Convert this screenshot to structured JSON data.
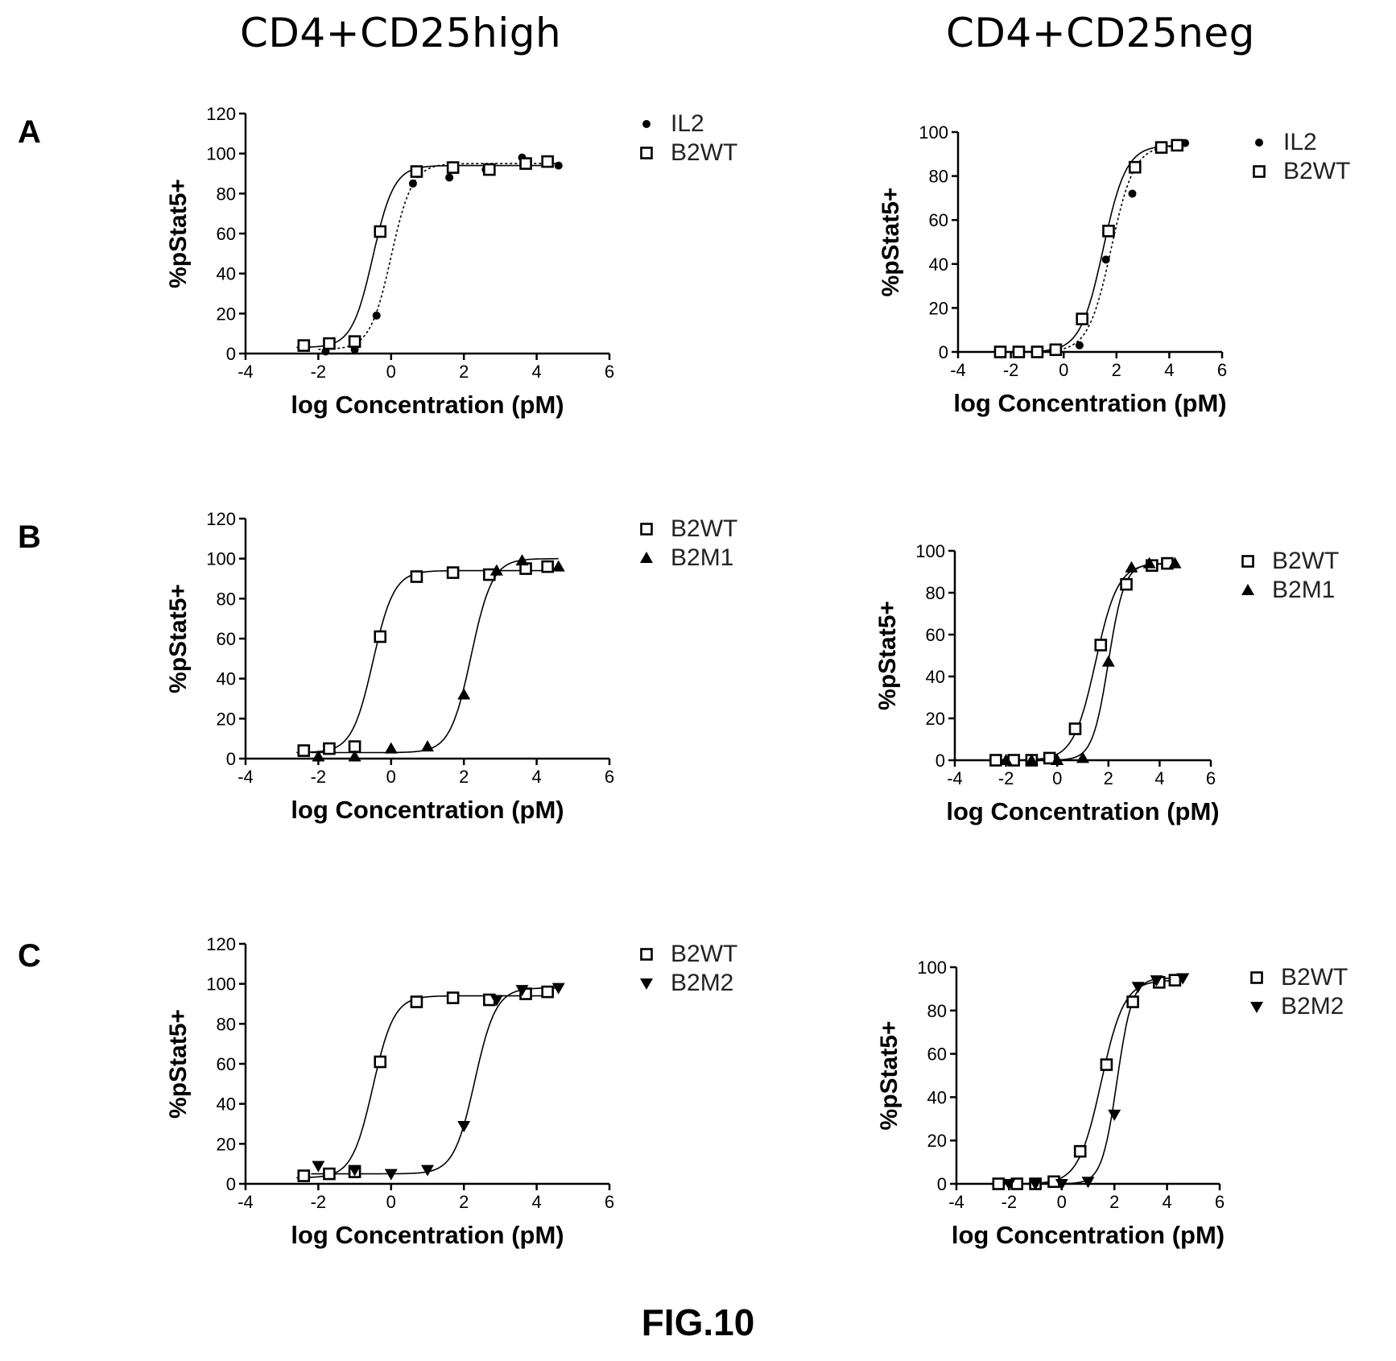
{
  "column_titles": [
    "CD4+CD25high",
    "CD4+CD25neg"
  ],
  "row_labels": [
    "A",
    "B",
    "C"
  ],
  "figure_label": "FIG.10",
  "chart_data": [
    {
      "panel": "A-left",
      "type": "scatter",
      "xlabel": "log Concentration (pM)",
      "ylabel": "%pStat5+",
      "xlim": [
        -4,
        6
      ],
      "ylim": [
        0,
        120
      ],
      "xticks": [
        -4,
        -2,
        0,
        2,
        4,
        6
      ],
      "yticks": [
        0,
        20,
        40,
        60,
        80,
        100,
        120
      ],
      "legend_position": "right",
      "series": [
        {
          "name": "IL2",
          "marker": "circle",
          "line": "dotted",
          "x": [
            -1.8,
            -1.0,
            -0.4,
            0.6,
            1.6,
            2.6,
            3.6,
            4.6
          ],
          "y": [
            1,
            2,
            19,
            85,
            88,
            92,
            98,
            94
          ],
          "curve": {
            "bottom": 2,
            "top": 95,
            "ec50": 0.0,
            "hill": 1.5
          }
        },
        {
          "name": "B2WT",
          "marker": "square-open",
          "line": "solid",
          "x": [
            -2.4,
            -1.7,
            -1.0,
            -0.3,
            0.7,
            1.7,
            2.7,
            3.7,
            4.3
          ],
          "y": [
            4,
            5,
            6,
            61,
            91,
            93,
            92,
            95,
            96
          ],
          "curve": {
            "bottom": 3,
            "top": 94,
            "ec50": -0.5,
            "hill": 1.5
          }
        }
      ]
    },
    {
      "panel": "A-right",
      "type": "scatter",
      "xlabel": "log Concentration (pM)",
      "ylabel": "%pStat5+",
      "xlim": [
        -4,
        6
      ],
      "ylim": [
        0,
        100
      ],
      "xticks": [
        -4,
        -2,
        0,
        2,
        4,
        6
      ],
      "yticks": [
        0,
        20,
        40,
        60,
        80,
        100
      ],
      "legend_position": "right",
      "series": [
        {
          "name": "IL2",
          "marker": "circle",
          "line": "dotted",
          "x": [
            -1.8,
            -1.0,
            -0.4,
            0.6,
            1.6,
            2.6,
            3.6,
            4.6
          ],
          "y": [
            0,
            0,
            1,
            3,
            42,
            72,
            93,
            95
          ],
          "curve": {
            "bottom": 0,
            "top": 94,
            "ec50": 1.8,
            "hill": 1.0
          }
        },
        {
          "name": "B2WT",
          "marker": "square-open",
          "line": "solid",
          "x": [
            -2.4,
            -1.7,
            -1.0,
            -0.3,
            0.7,
            1.7,
            2.7,
            3.7,
            4.3
          ],
          "y": [
            0,
            0,
            0,
            1,
            15,
            55,
            84,
            93,
            94
          ],
          "curve": {
            "bottom": 0,
            "top": 94,
            "ec50": 1.5,
            "hill": 1.0
          }
        }
      ]
    },
    {
      "panel": "B-left",
      "type": "scatter",
      "xlabel": "log Concentration (pM)",
      "ylabel": "%pStat5+",
      "xlim": [
        -4,
        6
      ],
      "ylim": [
        0,
        120
      ],
      "xticks": [
        -4,
        -2,
        0,
        2,
        4,
        6
      ],
      "yticks": [
        0,
        20,
        40,
        60,
        80,
        100,
        120
      ],
      "legend_position": "right",
      "series": [
        {
          "name": "B2WT",
          "marker": "square-open",
          "line": "solid",
          "x": [
            -2.4,
            -1.7,
            -1.0,
            -0.3,
            0.7,
            1.7,
            2.7,
            3.7,
            4.3
          ],
          "y": [
            4,
            5,
            6,
            61,
            91,
            93,
            92,
            95,
            96
          ],
          "curve": {
            "bottom": 3,
            "top": 94,
            "ec50": -0.5,
            "hill": 1.5
          }
        },
        {
          "name": "B2M1",
          "marker": "triangle-up",
          "line": "solid",
          "x": [
            -2.0,
            -1.0,
            0.0,
            1.0,
            2.0,
            2.9,
            3.6,
            4.6
          ],
          "y": [
            1,
            1,
            5,
            6,
            32,
            94,
            99,
            96
          ],
          "curve": {
            "bottom": 3,
            "top": 100,
            "ec50": 2.2,
            "hill": 1.5
          }
        }
      ]
    },
    {
      "panel": "B-right",
      "type": "scatter",
      "xlabel": "log Concentration (pM)",
      "ylabel": "%pStat5+",
      "xlim": [
        -4,
        6
      ],
      "ylim": [
        0,
        100
      ],
      "xticks": [
        -4,
        -2,
        0,
        2,
        4,
        6
      ],
      "yticks": [
        0,
        20,
        40,
        60,
        80,
        100
      ],
      "legend_position": "right",
      "series": [
        {
          "name": "B2WT",
          "marker": "square-open",
          "line": "solid",
          "x": [
            -2.4,
            -1.7,
            -1.0,
            -0.3,
            0.7,
            1.7,
            2.7,
            3.7,
            4.3
          ],
          "y": [
            0,
            0,
            0,
            1,
            15,
            55,
            84,
            93,
            94
          ],
          "curve": {
            "bottom": 0,
            "top": 94,
            "ec50": 1.5,
            "hill": 1.0
          }
        },
        {
          "name": "B2M1",
          "marker": "triangle-up",
          "line": "solid",
          "x": [
            -2.0,
            -1.0,
            0.0,
            1.0,
            2.0,
            2.9,
            3.6,
            4.6
          ],
          "y": [
            0,
            0,
            0,
            1,
            47,
            92,
            94,
            94
          ],
          "curve": {
            "bottom": 0,
            "top": 94,
            "ec50": 2.0,
            "hill": 1.4
          }
        }
      ]
    },
    {
      "panel": "C-left",
      "type": "scatter",
      "xlabel": "log Concentration (pM)",
      "ylabel": "%pStat5+",
      "xlim": [
        -4,
        6
      ],
      "ylim": [
        0,
        120
      ],
      "xticks": [
        -4,
        -2,
        0,
        2,
        4,
        6
      ],
      "yticks": [
        0,
        20,
        40,
        60,
        80,
        100,
        120
      ],
      "legend_position": "right",
      "series": [
        {
          "name": "B2WT",
          "marker": "square-open",
          "line": "solid",
          "x": [
            -2.4,
            -1.7,
            -1.0,
            -0.3,
            0.7,
            1.7,
            2.7,
            3.7,
            4.3
          ],
          "y": [
            4,
            5,
            6,
            61,
            91,
            93,
            92,
            95,
            96
          ],
          "curve": {
            "bottom": 3,
            "top": 94,
            "ec50": -0.5,
            "hill": 1.5
          }
        },
        {
          "name": "B2M2",
          "marker": "triangle-down",
          "line": "solid",
          "x": [
            -2.0,
            -1.0,
            0.0,
            1.0,
            2.0,
            2.9,
            3.6,
            4.6
          ],
          "y": [
            9,
            7,
            5,
            7,
            29,
            92,
            97,
            98
          ],
          "curve": {
            "bottom": 5,
            "top": 98,
            "ec50": 2.3,
            "hill": 1.5
          }
        }
      ]
    },
    {
      "panel": "C-right",
      "type": "scatter",
      "xlabel": "log Concentration (pM)",
      "ylabel": "%pStat5+",
      "xlim": [
        -4,
        6
      ],
      "ylim": [
        0,
        100
      ],
      "xticks": [
        -4,
        -2,
        0,
        2,
        4,
        6
      ],
      "yticks": [
        0,
        20,
        40,
        60,
        80,
        100
      ],
      "legend_position": "right",
      "series": [
        {
          "name": "B2WT",
          "marker": "square-open",
          "line": "solid",
          "x": [
            -2.4,
            -1.7,
            -1.0,
            -0.3,
            0.7,
            1.7,
            2.7,
            3.7,
            4.3
          ],
          "y": [
            0,
            0,
            0,
            1,
            15,
            55,
            84,
            93,
            94
          ],
          "curve": {
            "bottom": 0,
            "top": 94,
            "ec50": 1.5,
            "hill": 1.0
          }
        },
        {
          "name": "B2M2",
          "marker": "triangle-down",
          "line": "solid",
          "x": [
            -2.0,
            -1.0,
            0.0,
            1.0,
            2.0,
            2.9,
            3.6,
            4.6
          ],
          "y": [
            0,
            0,
            0,
            1,
            32,
            91,
            94,
            95
          ],
          "curve": {
            "bottom": 0,
            "top": 95,
            "ec50": 2.1,
            "hill": 1.5
          }
        }
      ]
    }
  ]
}
